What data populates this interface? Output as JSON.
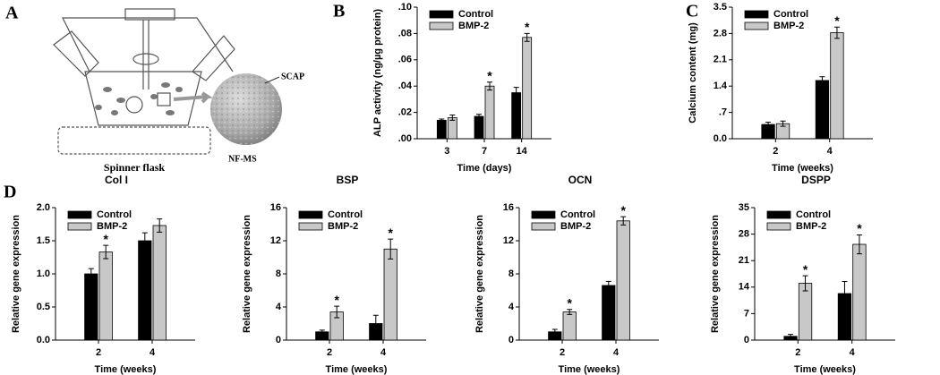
{
  "panel_labels": [
    "A",
    "B",
    "C",
    "D"
  ],
  "diagram": {
    "sphere_label": "SCAP",
    "product_label": "NF-MS",
    "caption": "Spinner flask"
  },
  "chart_data": [
    {
      "type": "bar",
      "xlabel": "Time (days)",
      "ylabel": "ALP activity (ng/µg protein)",
      "categories": [
        "3",
        "7",
        "14"
      ],
      "series": [
        {
          "name": "Control",
          "color": "#000000",
          "values": [
            0.014,
            0.017,
            0.035
          ],
          "errors": [
            0.001,
            0.0015,
            0.004
          ],
          "significance": [
            null,
            null,
            null
          ]
        },
        {
          "name": "BMP-2",
          "color": "#c8c8c8",
          "values": [
            0.016,
            0.04,
            0.077
          ],
          "errors": [
            0.002,
            0.003,
            0.003
          ],
          "significance": [
            null,
            "*",
            "*"
          ]
        }
      ],
      "ylim": [
        0,
        0.1
      ],
      "yticks": [
        {
          "value": 0,
          "label": ".00"
        },
        {
          "value": 0.02,
          "label": ".02"
        },
        {
          "value": 0.04,
          "label": ".04"
        },
        {
          "value": 0.06,
          "label": ".06"
        },
        {
          "value": 0.08,
          "label": ".08"
        },
        {
          "value": 0.1,
          "label": ".10"
        }
      ],
      "legend": "upper left"
    },
    {
      "type": "bar",
      "xlabel": "Time (weeks)",
      "ylabel": "Calcium content (mg)",
      "categories": [
        "2",
        "4"
      ],
      "series": [
        {
          "name": "Control",
          "color": "#000000",
          "values": [
            0.38,
            1.55
          ],
          "errors": [
            0.06,
            0.1
          ],
          "significance": [
            null,
            null
          ]
        },
        {
          "name": "BMP-2",
          "color": "#c8c8c8",
          "values": [
            0.4,
            2.82
          ],
          "errors": [
            0.07,
            0.15
          ],
          "significance": [
            null,
            "*"
          ]
        }
      ],
      "ylim": [
        0,
        3.5
      ],
      "yticks": [
        {
          "value": 0,
          "label": "0.0"
        },
        {
          "value": 0.7,
          "label": ".7"
        },
        1.4,
        2.1,
        2.8,
        3.5
      ],
      "legend": "upper left"
    },
    {
      "type": "bar",
      "title": "Col I",
      "xlabel": "Time (weeks)",
      "ylabel": "Relative gene expression",
      "categories": [
        "2",
        "4"
      ],
      "series": [
        {
          "name": "Control",
          "color": "#000000",
          "values": [
            1.0,
            1.5
          ],
          "errors": [
            0.08,
            0.12
          ],
          "significance": [
            null,
            null
          ]
        },
        {
          "name": "BMP-2",
          "color": "#c8c8c8",
          "values": [
            1.33,
            1.73
          ],
          "errors": [
            0.1,
            0.1
          ],
          "significance": [
            "*",
            null
          ]
        }
      ],
      "ylim": [
        0,
        2
      ],
      "yticks": [
        {
          "value": 0,
          "label": "0.0"
        },
        0.5,
        {
          "value": 1,
          "label": "1.0"
        },
        1.5,
        {
          "value": 2,
          "label": "2.0"
        }
      ],
      "legend": "upper left"
    },
    {
      "type": "bar",
      "title": "BSP",
      "xlabel": "Time (weeks)",
      "ylabel": "Relative gene expression",
      "categories": [
        "2",
        "4"
      ],
      "series": [
        {
          "name": "Control",
          "color": "#000000",
          "values": [
            1.0,
            2.0
          ],
          "errors": [
            0.2,
            1.0
          ],
          "significance": [
            null,
            null
          ]
        },
        {
          "name": "BMP-2",
          "color": "#c8c8c8",
          "values": [
            3.4,
            11.0
          ],
          "errors": [
            0.7,
            1.2
          ],
          "significance": [
            "*",
            "*"
          ]
        }
      ],
      "ylim": [
        0,
        16
      ],
      "yticks": [
        0,
        4,
        8,
        12,
        16
      ],
      "legend": "upper left"
    },
    {
      "type": "bar",
      "title": "OCN",
      "xlabel": "Time (weeks)",
      "ylabel": "Relative gene expression",
      "categories": [
        "2",
        "4"
      ],
      "series": [
        {
          "name": "Control",
          "color": "#000000",
          "values": [
            1.0,
            6.6
          ],
          "errors": [
            0.3,
            0.5
          ],
          "significance": [
            null,
            null
          ]
        },
        {
          "name": "BMP-2",
          "color": "#c8c8c8",
          "values": [
            3.4,
            14.4
          ],
          "errors": [
            0.3,
            0.5
          ],
          "significance": [
            "*",
            "*"
          ]
        }
      ],
      "ylim": [
        0,
        16
      ],
      "yticks": [
        0,
        4,
        8,
        12,
        16
      ],
      "legend": "upper left"
    },
    {
      "type": "bar",
      "title": "DSPP",
      "xlabel": "Time (weeks)",
      "ylabel": "Relative gene expression",
      "categories": [
        "2",
        "4"
      ],
      "series": [
        {
          "name": "Control",
          "color": "#000000",
          "values": [
            1.0,
            12.3
          ],
          "errors": [
            0.5,
            3.2
          ],
          "significance": [
            null,
            null
          ]
        },
        {
          "name": "BMP-2",
          "color": "#c8c8c8",
          "values": [
            15.0,
            25.3
          ],
          "errors": [
            2.0,
            2.5
          ],
          "significance": [
            "*",
            "*"
          ]
        }
      ],
      "ylim": [
        0,
        35
      ],
      "yticks": [
        0,
        7,
        14,
        21,
        28,
        35
      ],
      "legend": "upper left"
    }
  ]
}
